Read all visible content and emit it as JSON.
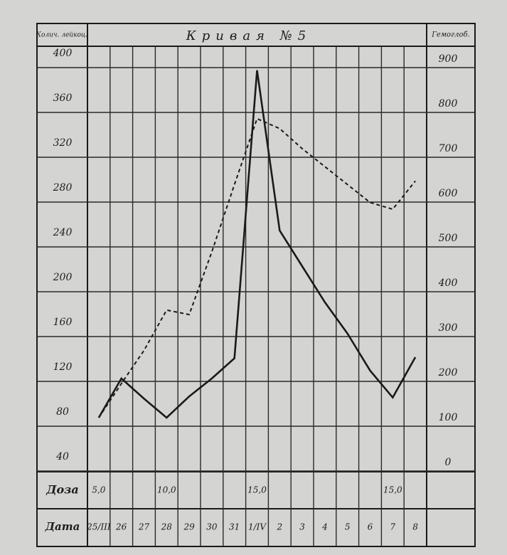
{
  "chart_data": {
    "type": "line",
    "title": "Кривая №5",
    "y_label": "Колич. лейкоц.",
    "y2_label": "Гемоглоб.",
    "categories": [
      "25/III",
      "26",
      "27",
      "28",
      "29",
      "30",
      "31",
      "1/IV",
      "2",
      "3",
      "4",
      "5",
      "6",
      "7",
      "8"
    ],
    "series": [
      {
        "color": "#1a1a1a",
        "line_style": "solid",
        "values": [
          80,
          115,
          97,
          80,
          99,
          115,
          133,
          390,
          247,
          215,
          183,
          155,
          122,
          98,
          134
        ]
      },
      {
        "color": "#1a1a1a",
        "line_style": "dashed",
        "axis": "y2",
        "values": [
          100,
          176,
          250,
          340,
          330,
          470,
          620,
          767,
          745,
          700,
          660,
          620,
          580,
          565,
          628
        ]
      }
    ],
    "ylim": [
      40,
      400
    ],
    "yticks": [
      40,
      80,
      120,
      160,
      200,
      240,
      280,
      320,
      360,
      400
    ],
    "y2lim": [
      0,
      900
    ],
    "y2ticks": [
      0,
      100,
      200,
      300,
      400,
      500,
      600,
      700,
      800,
      900
    ],
    "grid": true,
    "dose_label": "Доза",
    "dose": [
      "5,0",
      null,
      null,
      "10,0",
      null,
      null,
      null,
      "15,0",
      null,
      null,
      null,
      null,
      null,
      "15,0",
      null
    ],
    "date_label": "Дата"
  }
}
